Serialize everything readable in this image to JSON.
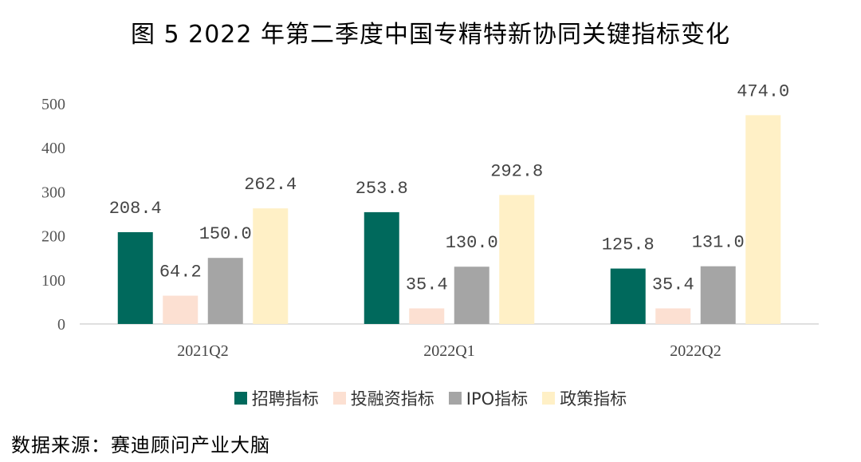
{
  "chart_data": {
    "type": "bar",
    "title": "图 5 2022 年第二季度中国专精特新协同关键指标变化",
    "categories": [
      "2021Q2",
      "2022Q1",
      "2022Q2"
    ],
    "series": [
      {
        "name": "招聘指标",
        "color": "#00695C",
        "values": [
          208.4,
          253.8,
          125.8
        ]
      },
      {
        "name": "投融资指标",
        "color": "#FCE0D2",
        "values": [
          64.2,
          35.4,
          35.4
        ]
      },
      {
        "name": "IPO指标",
        "color": "#A5A5A5",
        "values": [
          150.0,
          130.0,
          131.0
        ]
      },
      {
        "name": "政策指标",
        "color": "#FFF0C6",
        "values": [
          262.4,
          292.8,
          474.0
        ]
      }
    ],
    "yticks": [
      0,
      100,
      200,
      300,
      400,
      500
    ],
    "ylim": [
      0,
      500
    ],
    "xlabel": "",
    "ylabel": "",
    "grid": false,
    "legend": "bottom"
  },
  "source": "数据来源：赛迪顾问产业大脑"
}
